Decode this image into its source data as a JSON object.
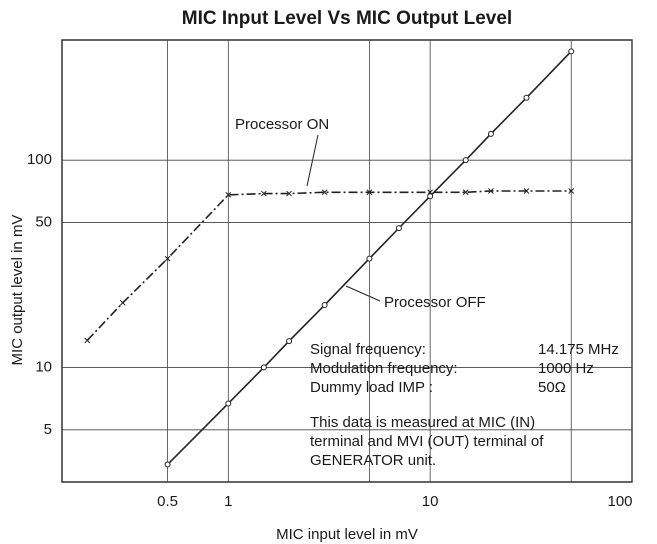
{
  "chart_data": {
    "type": "line",
    "title": "MIC Input Level Vs MIC Output Level",
    "x_label": "MIC input level in mV",
    "y_label": "MIC output level in mV",
    "log_x": true,
    "log_y": true,
    "grid": true,
    "xlim": [
      0.15,
      100
    ],
    "ylim": [
      2.8,
      380
    ],
    "xticks": [
      0.5,
      1,
      10,
      100
    ],
    "yticks": [
      5,
      10,
      50,
      100
    ],
    "minor_xgrid": [
      5,
      50
    ],
    "series": [
      {
        "name": "Processor ON",
        "color": "#222222",
        "style": "dashdot",
        "marker": "x",
        "x": [
          0.2,
          0.3,
          0.5,
          1,
          1.5,
          2,
          3,
          5,
          10,
          15,
          20,
          30,
          50
        ],
        "values": [
          13.5,
          20.5,
          33.5,
          68,
          69,
          69,
          70,
          70,
          70,
          70,
          71,
          71,
          71
        ]
      },
      {
        "name": "Processor OFF",
        "color": "#222222",
        "style": "solid",
        "marker": "o",
        "x": [
          0.5,
          1,
          1.5,
          2,
          3,
          5,
          7,
          10,
          15,
          20,
          30,
          50
        ],
        "values": [
          3.4,
          6.7,
          10,
          13.4,
          20,
          33.5,
          47,
          67,
          100,
          134,
          200,
          335
        ]
      }
    ],
    "info": [
      [
        "Signal frequency:",
        "14.175 MHz"
      ],
      [
        "Modulation frequency:",
        "1000 Hz"
      ],
      [
        "Dummy load IMP :",
        "50Ω"
      ]
    ],
    "note": [
      "This data is measured at MIC (IN)",
      "terminal and MVI (OUT) terminal of",
      "GENERATOR unit."
    ]
  }
}
